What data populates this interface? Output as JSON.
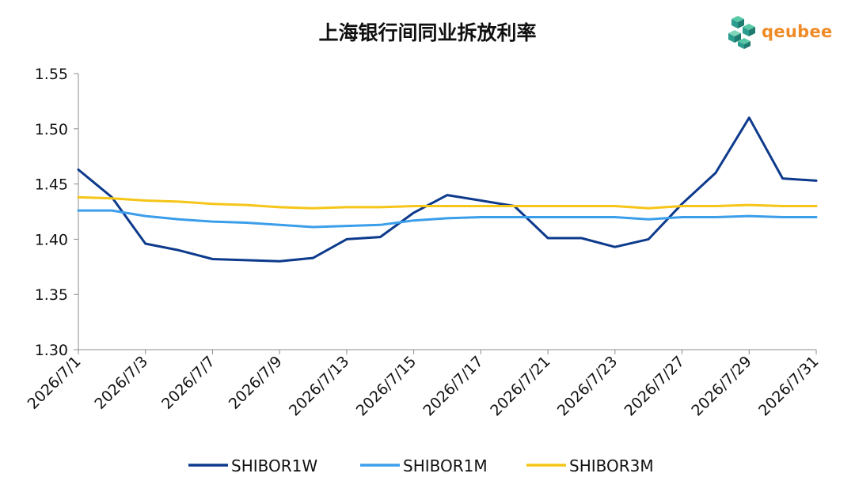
{
  "brand": {
    "name": "qeubee",
    "icon": "cube-cluster-icon",
    "color": "#f08a24",
    "icon_color": "#2a9d8f"
  },
  "chart_data": {
    "type": "line",
    "title": "上海银行间同业拆放利率",
    "xlabel": "",
    "ylabel": "",
    "x": [
      "2026/7/1",
      "2026/7/2",
      "2026/7/3",
      "2026/7/6",
      "2026/7/7",
      "2026/7/8",
      "2026/7/9",
      "2026/7/10",
      "2026/7/13",
      "2026/7/14",
      "2026/7/15",
      "2026/7/16",
      "2026/7/17",
      "2026/7/20",
      "2026/7/21",
      "2026/7/22",
      "2026/7/23",
      "2026/7/24",
      "2026/7/27",
      "2026/7/28",
      "2026/7/29",
      "2026/7/30",
      "2026/7/31"
    ],
    "x_tick_labels": [
      "2026/7/1",
      "2026/7/3",
      "2026/7/7",
      "2026/7/9",
      "2026/7/13",
      "2026/7/15",
      "2026/7/17",
      "2026/7/21",
      "2026/7/23",
      "2026/7/27",
      "2026/7/29",
      "2026/7/31"
    ],
    "ylim": [
      1.3,
      1.55
    ],
    "y_ticks": [
      "1.30",
      "1.35",
      "1.40",
      "1.45",
      "1.50",
      "1.55"
    ],
    "grid": false,
    "legend_position": "bottom",
    "series": [
      {
        "name": "SHIBOR1W",
        "color": "#0d3a8c",
        "values": [
          1.463,
          1.438,
          1.396,
          1.39,
          1.382,
          1.381,
          1.38,
          1.383,
          1.4,
          1.402,
          1.424,
          1.44,
          1.435,
          1.43,
          1.401,
          1.401,
          1.393,
          1.4,
          1.432,
          1.46,
          1.51,
          1.455,
          1.453
        ]
      },
      {
        "name": "SHIBOR1M",
        "color": "#3b9eea",
        "values": [
          1.426,
          1.426,
          1.421,
          1.418,
          1.416,
          1.415,
          1.413,
          1.411,
          1.412,
          1.413,
          1.417,
          1.419,
          1.42,
          1.42,
          1.42,
          1.42,
          1.42,
          1.418,
          1.42,
          1.42,
          1.421,
          1.42,
          1.42
        ]
      },
      {
        "name": "SHIBOR3M",
        "color": "#f5c518",
        "values": [
          1.438,
          1.437,
          1.435,
          1.434,
          1.432,
          1.431,
          1.429,
          1.428,
          1.429,
          1.429,
          1.43,
          1.43,
          1.43,
          1.43,
          1.43,
          1.43,
          1.43,
          1.428,
          1.43,
          1.43,
          1.431,
          1.43,
          1.43
        ]
      }
    ]
  }
}
